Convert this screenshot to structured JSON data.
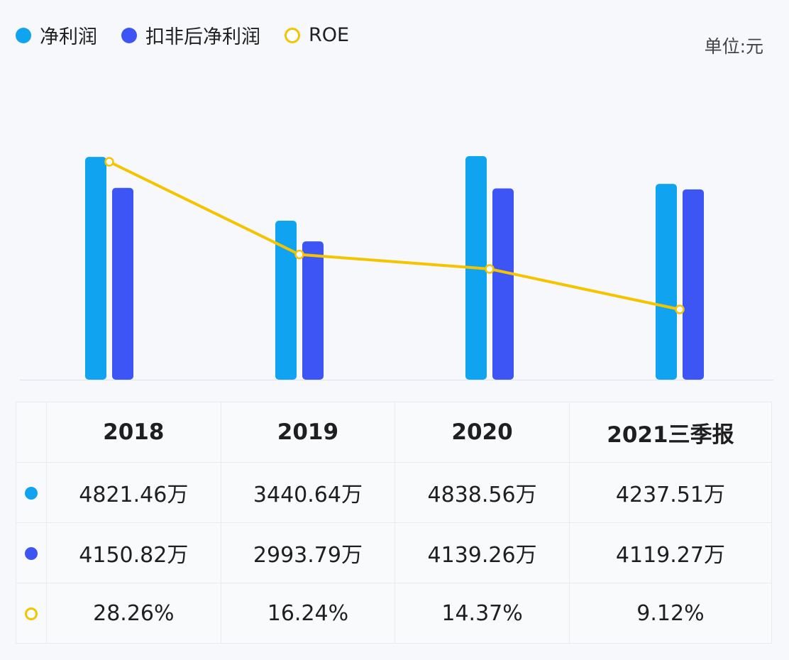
{
  "legend": {
    "items": [
      {
        "label": "净利润",
        "color": "#10a3f0",
        "marker": "dot"
      },
      {
        "label": "扣非后净利润",
        "color": "#3d55f5",
        "marker": "dot"
      },
      {
        "label": "ROE",
        "color": "#f5c400",
        "marker": "ring"
      }
    ]
  },
  "unit": "单位:元",
  "chart_data": {
    "type": "bar",
    "categories": [
      "2018",
      "2019",
      "2020",
      "2021三季报"
    ],
    "series": [
      {
        "name": "净利润",
        "type": "bar",
        "color": "#10a3f0",
        "values": [
          48214600,
          34406400,
          48385600,
          42375100
        ],
        "labels": [
          "4821.46万",
          "3440.64万",
          "4838.56万",
          "4237.51万"
        ]
      },
      {
        "name": "扣非后净利润",
        "type": "bar",
        "color": "#3d55f5",
        "values": [
          41508200,
          29937900,
          41392600,
          41192700
        ],
        "labels": [
          "4150.82万",
          "2993.79万",
          "4139.26万",
          "4119.27万"
        ]
      },
      {
        "name": "ROE",
        "type": "line",
        "color": "#f5c400",
        "values": [
          28.26,
          16.24,
          14.37,
          9.12
        ],
        "labels": [
          "28.26%",
          "16.24%",
          "14.37%",
          "9.12%"
        ]
      }
    ]
  },
  "table": {
    "headers": [
      "2018",
      "2019",
      "2020",
      "2021三季报"
    ],
    "rows": [
      {
        "marker": "dot",
        "color": "#10a3f0",
        "cells": [
          "4821.46万",
          "3440.64万",
          "4838.56万",
          "4237.51万"
        ]
      },
      {
        "marker": "dot",
        "color": "#3d55f5",
        "cells": [
          "4150.82万",
          "2993.79万",
          "4139.26万",
          "4119.27万"
        ]
      },
      {
        "marker": "ring",
        "color": "#f5c400",
        "cells": [
          "28.26%",
          "16.24%",
          "14.37%",
          "9.12%"
        ]
      }
    ]
  }
}
